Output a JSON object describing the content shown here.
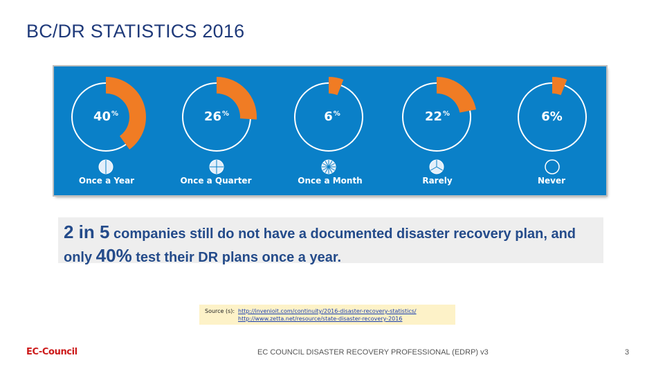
{
  "slide": {
    "title": "BC/DR STATISTICS 2016",
    "page_number": "3"
  },
  "infographic": {
    "background_color": "#0a80c8",
    "accent_color": "#f07c24",
    "stats": [
      {
        "value": "40",
        "unit": "%",
        "percent": 40,
        "label": "Once a Year",
        "icon": "pie-2-slices-icon"
      },
      {
        "value": "26",
        "unit": "%",
        "percent": 26,
        "label": "Once a Quarter",
        "icon": "pie-4-slices-icon"
      },
      {
        "value": "6",
        "unit": "%",
        "percent": 6,
        "label": "Once a Month",
        "icon": "pie-12-slices-icon"
      },
      {
        "value": "22",
        "unit": "%",
        "percent": 22,
        "label": "Rarely",
        "icon": "pie-3-slices-icon"
      },
      {
        "value": "6%",
        "unit": "",
        "percent": 6,
        "label": "Never",
        "icon": "empty-circle-icon"
      }
    ]
  },
  "callout": {
    "part1_big": "2 in 5",
    "part2": " companies still do not have a documented disaster recovery plan, and only ",
    "part3_big": "40%",
    "part4": " test their DR plans once a year."
  },
  "source": {
    "label": "Source (s):",
    "url1": "http://invenioit.com/continuity/2016-disaster-recovery-statistics/",
    "url2": "http://www.zetta.net/resource/state-disaster-recovery-2016"
  },
  "footer": {
    "logo_text": "EC-Council",
    "text": "EC COUNCIL DISASTER RECOVERY PROFESSIONAL (EDRP) v3"
  }
}
